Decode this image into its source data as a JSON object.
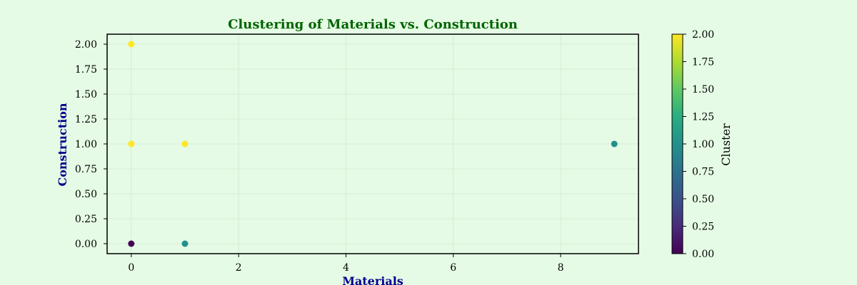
{
  "chart_data": {
    "type": "scatter",
    "title": "Clustering of Materials vs. Construction",
    "xlabel": "Materials",
    "ylabel": "Construction",
    "xlim": [
      -0.45,
      9.45
    ],
    "ylim": [
      -0.1,
      2.1
    ],
    "xticks": [
      0,
      2,
      4,
      6,
      8
    ],
    "xtick_labels": [
      "0",
      "2",
      "4",
      "6",
      "8"
    ],
    "yticks": [
      0,
      0.25,
      0.5,
      0.75,
      1.0,
      1.25,
      1.5,
      1.75,
      2.0
    ],
    "ytick_labels": [
      "0.00",
      "0.25",
      "0.50",
      "0.75",
      "1.00",
      "1.25",
      "1.50",
      "1.75",
      "2.00"
    ],
    "grid": true,
    "colormap": "viridis",
    "colorbar": {
      "label": "Cluster",
      "range": [
        0,
        2
      ],
      "ticks": [
        0,
        0.25,
        0.5,
        0.75,
        1.0,
        1.25,
        1.5,
        1.75,
        2.0
      ],
      "tick_labels": [
        "0.00",
        "0.25",
        "0.50",
        "0.75",
        "1.00",
        "1.25",
        "1.50",
        "1.75",
        "2.00"
      ]
    },
    "points": [
      {
        "x": 0,
        "y": 2,
        "cluster": 2
      },
      {
        "x": 0,
        "y": 1,
        "cluster": 2
      },
      {
        "x": 1,
        "y": 1,
        "cluster": 2
      },
      {
        "x": 9,
        "y": 1,
        "cluster": 1
      },
      {
        "x": 0,
        "y": 0,
        "cluster": 0
      },
      {
        "x": 1,
        "y": 0,
        "cluster": 1
      }
    ],
    "colors": {
      "background": "#e5fbe5",
      "title": "#006400",
      "axis_label": "#00008b",
      "cluster_0": "#440154",
      "cluster_1": "#21918c",
      "cluster_2": "#fde725"
    }
  }
}
